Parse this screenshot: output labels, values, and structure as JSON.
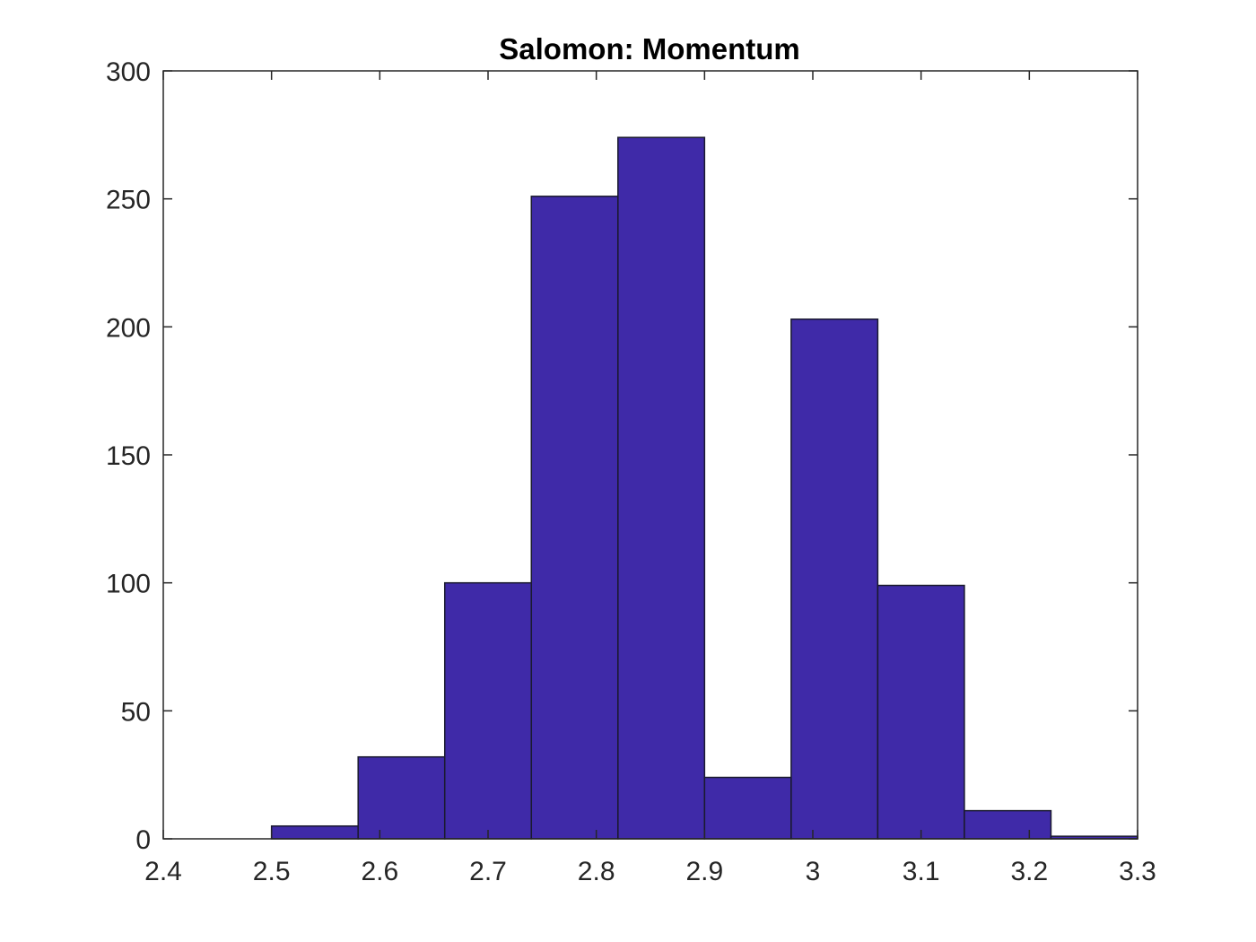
{
  "chart_data": {
    "type": "bar",
    "title": "Salomon: Momentum",
    "xlabel": "",
    "ylabel": "",
    "xlim": [
      2.4,
      3.3
    ],
    "ylim": [
      0,
      300
    ],
    "x_ticks": [
      "2.4",
      "2.5",
      "2.6",
      "2.7",
      "2.8",
      "2.9",
      "3",
      "3.1",
      "3.2",
      "3.3"
    ],
    "y_ticks": [
      "0",
      "50",
      "100",
      "150",
      "200",
      "250",
      "300"
    ],
    "bin_edges": [
      2.5,
      2.58,
      2.66,
      2.74,
      2.82,
      2.9,
      2.98,
      3.06,
      3.14,
      3.22,
      3.3
    ],
    "values": [
      5,
      32,
      100,
      251,
      274,
      24,
      203,
      99,
      11,
      1
    ],
    "grid": false,
    "bar_color": "#3f2aa8",
    "edge_color": "#1a1a2e"
  }
}
